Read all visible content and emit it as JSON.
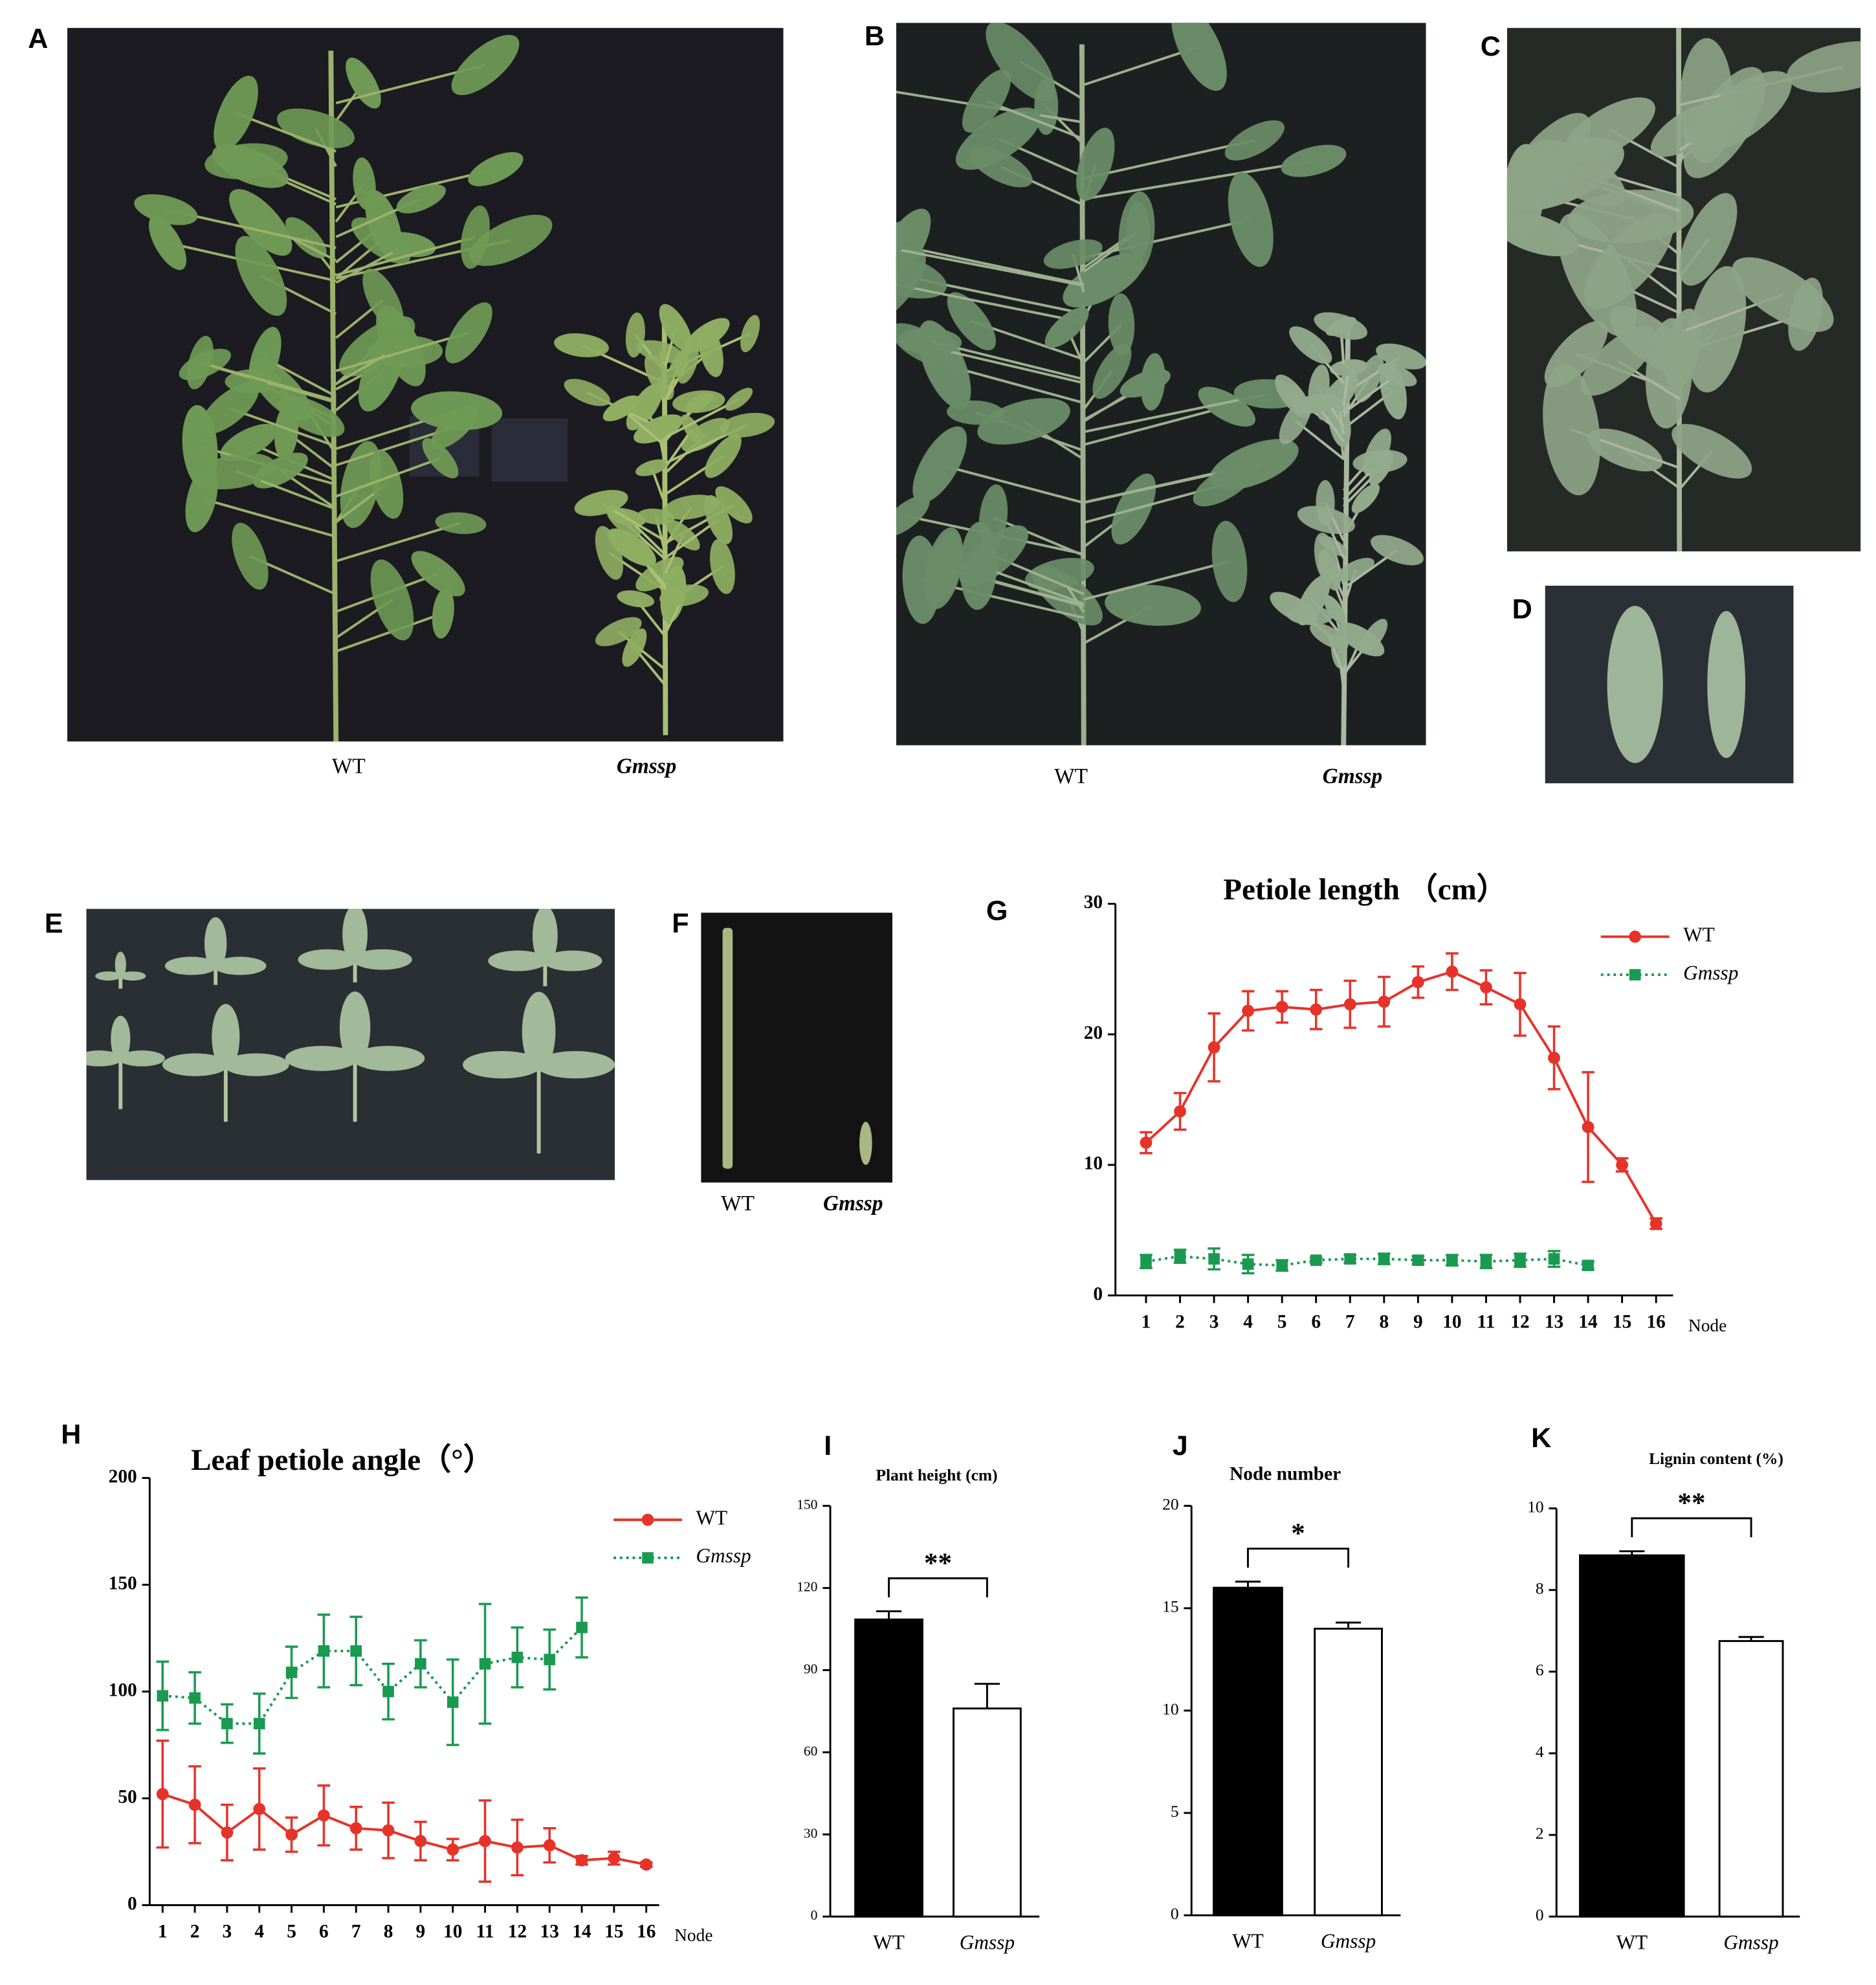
{
  "photos": [
    {
      "label": "A",
      "captions": [
        "WT",
        "Gmssp"
      ]
    },
    {
      "label": "B",
      "captions": [
        "WT",
        "Gmssp"
      ]
    },
    {
      "label": "C"
    },
    {
      "label": "D"
    },
    {
      "label": "E"
    },
    {
      "label": "F",
      "captions": [
        "WT",
        "Gmssp"
      ]
    }
  ],
  "chart_data": [
    {
      "type": "line",
      "label": "G",
      "title": "Petiole length （cm）",
      "xlabel": "Node",
      "x": [
        1,
        2,
        3,
        4,
        5,
        6,
        7,
        8,
        9,
        10,
        11,
        12,
        13,
        14,
        15,
        16
      ],
      "xlim": [
        0.1,
        16.5
      ],
      "xticks": [
        1,
        2,
        3,
        4,
        5,
        6,
        7,
        8,
        9,
        10,
        11,
        12,
        13,
        14,
        15,
        16
      ],
      "ylim": [
        0,
        30
      ],
      "yticks": [
        0,
        10,
        20,
        30
      ],
      "series": [
        {
          "name": "WT",
          "color": "#e5332a",
          "marker": "circle",
          "linestyle": "solid",
          "values": [
            11.7,
            14.1,
            19.0,
            21.8,
            22.1,
            21.9,
            22.3,
            22.5,
            24.0,
            24.8,
            23.6,
            22.3,
            18.2,
            12.9,
            10.0,
            5.5
          ],
          "errors": [
            0.8,
            1.4,
            2.6,
            1.5,
            1.2,
            1.5,
            1.8,
            1.9,
            1.2,
            1.4,
            1.3,
            2.4,
            2.4,
            4.2,
            0.5,
            0.4
          ]
        },
        {
          "name": "Gmssp",
          "color": "#1a9a50",
          "marker": "square",
          "linestyle": "dotted",
          "values": [
            2.6,
            3.0,
            2.8,
            2.4,
            2.3,
            2.7,
            2.8,
            2.8,
            2.7,
            2.7,
            2.6,
            2.7,
            2.8,
            2.3,
            null,
            null
          ],
          "errors": [
            0.5,
            0.5,
            0.8,
            0.7,
            0.4,
            0.2,
            0.3,
            0.4,
            0.3,
            0.4,
            0.5,
            0.5,
            0.6,
            0.3,
            null,
            null
          ]
        }
      ]
    },
    {
      "type": "line",
      "label": "H",
      "title": "Leaf petiole angle（°）",
      "xlabel": "Node",
      "x": [
        1,
        2,
        3,
        4,
        5,
        6,
        7,
        8,
        9,
        10,
        11,
        12,
        13,
        14,
        15,
        16
      ],
      "xlim": [
        0.6,
        16.4
      ],
      "xticks": [
        1,
        2,
        3,
        4,
        5,
        6,
        7,
        8,
        9,
        10,
        11,
        12,
        13,
        14,
        15,
        16
      ],
      "ylim": [
        0,
        200
      ],
      "yticks": [
        0,
        50,
        100,
        150,
        200
      ],
      "series": [
        {
          "name": "WT",
          "color": "#e5332a",
          "marker": "circle",
          "linestyle": "solid",
          "values": [
            52,
            47,
            34,
            45,
            33,
            42,
            36,
            35,
            30,
            26,
            30,
            27,
            28,
            21,
            22,
            19
          ],
          "errors": [
            25,
            18,
            13,
            19,
            8,
            14,
            10,
            13,
            9,
            5,
            19,
            13,
            8,
            2,
            3,
            1
          ]
        },
        {
          "name": "Gmssp",
          "color": "#1a9a50",
          "marker": "square",
          "linestyle": "dotted",
          "values": [
            98,
            97,
            85,
            85,
            109,
            119,
            119,
            100,
            113,
            95,
            113,
            116,
            115,
            130,
            null,
            null
          ],
          "errors": [
            16,
            12,
            9,
            14,
            12,
            17,
            16,
            13,
            11,
            20,
            28,
            14,
            14,
            14,
            null,
            null
          ]
        }
      ]
    },
    {
      "type": "bar",
      "label": "I",
      "title": "Plant height (cm)",
      "categories": [
        "WT",
        "Gmssp"
      ],
      "values": [
        108.5,
        76
      ],
      "errors": [
        3,
        9
      ],
      "colors": [
        "#000000",
        "#ffffff"
      ],
      "ylim": [
        0,
        150
      ],
      "yticks": [
        0,
        30,
        60,
        90,
        120,
        150
      ],
      "annotation": "**"
    },
    {
      "type": "bar",
      "label": "J",
      "title": "Node number",
      "categories": [
        "WT",
        "Gmssp"
      ],
      "values": [
        16,
        14
      ],
      "errors": [
        0.3,
        0.3
      ],
      "colors": [
        "#000000",
        "#ffffff"
      ],
      "ylim": [
        0,
        20
      ],
      "yticks": [
        0,
        5,
        10,
        15,
        20
      ],
      "annotation": "*"
    },
    {
      "type": "bar",
      "label": "K",
      "title": "Lignin content (%)",
      "categories": [
        "WT",
        "Gmssp"
      ],
      "values": [
        8.85,
        6.75
      ],
      "errors": [
        0.1,
        0.1
      ],
      "colors": [
        "#000000",
        "#ffffff"
      ],
      "ylim": [
        0,
        10
      ],
      "yticks": [
        0,
        2,
        4,
        6,
        8,
        10
      ],
      "annotation": "**"
    }
  ]
}
